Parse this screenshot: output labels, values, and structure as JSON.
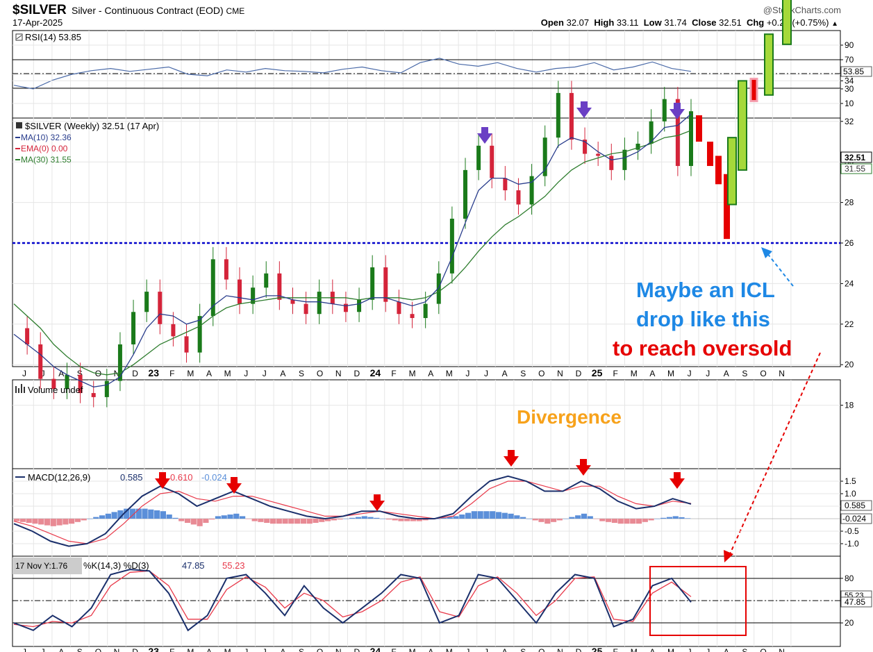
{
  "header": {
    "symbol": "$SILVER",
    "subtitle": "Silver - Continuous Contract (EOD)",
    "exchange": "CME",
    "date": "17-Apr-2025",
    "brand": "@StockCharts.com",
    "open_label": "Open",
    "open": "32.07",
    "high_label": "High",
    "high": "33.11",
    "low_label": "Low",
    "low": "31.74",
    "close_label": "Close",
    "close": "32.51",
    "chg_label": "Chg",
    "chg": "+0.24 (+0.75%)"
  },
  "panels": {
    "rsi": {
      "label": "RSI(14) 53.85",
      "value_tag": "53.85",
      "ticks": [
        "90",
        "70",
        "50",
        "30",
        "10"
      ]
    },
    "price": {
      "legend_main": "$SILVER (Weekly) 32.51 (17 Apr)",
      "legend_ma10": "MA(10) 32.36",
      "legend_ema": "EMA(0) 0.00",
      "legend_ma30": "MA(30) 31.55",
      "tag_close": "32.51",
      "tag_ma30": "31.55",
      "ticks": [
        "34",
        "32",
        "30",
        "28",
        "26",
        "24",
        "22",
        "20",
        "18"
      ]
    },
    "volume": {
      "label": "Volume undef"
    },
    "macd": {
      "label_name": "MACD(12,26,9)",
      "label_macd": "0.585",
      "label_signal": "0.610",
      "label_hist": "-0.024",
      "tag_macd": "0.585",
      "tag_hist": "-0.024",
      "ticks": [
        "1.5",
        "1.0",
        "0.5",
        "-0.5",
        "-1.0"
      ]
    },
    "stoch": {
      "label_prefix": "%K(14,3) %D(3)",
      "label_k": "47.85",
      "label_d": "55.23",
      "tooltip": "17 Nov Y:1.76",
      "tag_k": "47.85",
      "tag_d": "55.23",
      "ticks": [
        "80",
        "50",
        "20"
      ]
    }
  },
  "x_axis": {
    "labels": [
      "J",
      "J",
      "A",
      "S",
      "O",
      "N",
      "D",
      "23",
      "F",
      "M",
      "A",
      "M",
      "J",
      "J",
      "A",
      "S",
      "O",
      "N",
      "D",
      "24",
      "F",
      "M",
      "A",
      "M",
      "J",
      "J",
      "A",
      "S",
      "O",
      "N",
      "D",
      "25",
      "F",
      "M",
      "A",
      "M",
      "J",
      "J",
      "A",
      "S",
      "O",
      "N"
    ]
  },
  "annotations": {
    "icl_line1": "Maybe an ICL",
    "icl_line2": "drop like this",
    "icl_line3": "to reach oversold",
    "divergence": "Divergence"
  },
  "colors": {
    "up": "#1a7a1a",
    "down": "#d4243a",
    "ma10": "#283c8c",
    "ma30": "#2e7d2e",
    "support": "#0000cc",
    "annotation_blue": "#1e88e5",
    "annotation_red": "#e60000",
    "divergence": "#f7a21b",
    "arrow_purple": "#6a3fc4",
    "arrow_red": "#e60000",
    "hist_pos": "#5b8fd9",
    "hist_neg": "#e88a94"
  },
  "chart_data": [
    {
      "type": "line",
      "title": "RSI(14) 53.85",
      "ylim": [
        0,
        100
      ],
      "series": [
        {
          "name": "RSI(14)",
          "values": [
            35,
            30,
            42,
            50,
            55,
            58,
            54,
            57,
            60,
            50,
            48,
            56,
            53,
            58,
            55,
            54,
            52,
            57,
            60,
            55,
            52,
            66,
            72,
            64,
            61,
            66,
            58,
            53,
            58,
            60,
            66,
            56,
            60,
            67,
            58,
            54
          ]
        }
      ]
    },
    {
      "type": "line",
      "title": "$SILVER (Weekly) 32.51 (17 Apr)",
      "ylim": [
        17,
        36
      ],
      "support_level": 26.1,
      "series": [
        {
          "name": "$SILVER",
          "values": [
            21.8,
            21.0,
            19.3,
            18.8,
            19.5,
            18.6,
            18.4,
            19.2,
            21.0,
            22.6,
            23.6,
            22.0,
            21.4,
            20.6,
            22.4,
            25.2,
            24.2,
            23.0,
            23.8,
            24.5,
            23.2,
            23.0,
            22.5,
            23.6,
            23.0,
            22.6,
            23.2,
            24.8,
            23.1,
            22.5,
            22.3,
            23.0,
            24.5,
            27.2,
            29.6,
            30.8,
            29.2,
            28.6,
            27.9,
            29.3,
            31.2,
            33.4,
            31.1,
            30.4,
            30.3,
            29.6,
            30.6,
            30.9,
            32.0,
            33.1,
            29.8,
            32.5
          ]
        },
        {
          "name": "MA(10)",
          "values": [
            21.5,
            21.0,
            20.5,
            19.9,
            19.5,
            19.2,
            18.9,
            19.0,
            19.4,
            20.5,
            21.8,
            22.5,
            22.4,
            22.0,
            22.2,
            22.9,
            23.4,
            23.3,
            23.2,
            23.4,
            23.4,
            23.2,
            23.1,
            23.1,
            23.0,
            22.9,
            23.0,
            23.3,
            23.3,
            23.1,
            22.9,
            23.1,
            23.8,
            25.3,
            27.0,
            28.6,
            29.2,
            29.2,
            28.9,
            29.0,
            29.6,
            30.8,
            31.2,
            31.0,
            30.5,
            30.1,
            30.2,
            30.5,
            31.0,
            31.7,
            31.8,
            32.36
          ]
        },
        {
          "name": "MA(30)",
          "values": [
            23.0,
            22.4,
            21.8,
            21.0,
            20.4,
            19.9,
            19.6,
            19.5,
            19.6,
            20.0,
            20.5,
            21.0,
            21.3,
            21.6,
            21.9,
            22.4,
            22.8,
            23.0,
            23.1,
            23.2,
            23.3,
            23.3,
            23.3,
            23.3,
            23.3,
            23.3,
            23.2,
            23.3,
            23.3,
            23.3,
            23.2,
            23.3,
            23.6,
            24.1,
            24.8,
            25.6,
            26.3,
            26.9,
            27.3,
            27.8,
            28.3,
            29.0,
            29.6,
            30.0,
            30.2,
            30.4,
            30.5,
            30.7,
            30.9,
            31.2,
            31.3,
            31.55
          ]
        }
      ],
      "projection_bars": [
        {
          "dir": "down",
          "open": 32.3,
          "close": 31.0
        },
        {
          "dir": "down",
          "open": 31.0,
          "close": 29.8
        },
        {
          "dir": "down",
          "open": 30.3,
          "close": 28.9
        },
        {
          "dir": "down",
          "open": 29.4,
          "close": 26.2
        },
        {
          "dir": "up",
          "open": 27.9,
          "close": 31.2
        },
        {
          "dir": "up",
          "open": 29.6,
          "close": 34.0
        },
        {
          "dir": "down",
          "open": 34.1,
          "close": 33.0
        },
        {
          "dir": "up",
          "open": 33.3,
          "close": 36.3
        },
        {
          "dir": "up",
          "open": 35.8,
          "close": 40.0
        }
      ]
    },
    {
      "type": "line",
      "title": "MACD(12,26,9) 0.585, 0.610, -0.024",
      "ylim": [
        -1.3,
        1.8
      ],
      "series": [
        {
          "name": "MACD",
          "values": [
            -0.2,
            -0.5,
            -0.9,
            -1.1,
            -1.0,
            -0.6,
            0.2,
            0.9,
            1.3,
            1.0,
            0.5,
            0.8,
            1.1,
            0.8,
            0.5,
            0.3,
            0.1,
            0.0,
            0.1,
            0.3,
            0.3,
            0.1,
            0.0,
            0.0,
            0.2,
            0.9,
            1.5,
            1.7,
            1.5,
            1.1,
            1.1,
            1.5,
            1.2,
            0.7,
            0.4,
            0.5,
            0.8,
            0.585
          ]
        },
        {
          "name": "Signal",
          "values": [
            -0.1,
            -0.3,
            -0.6,
            -0.9,
            -1.0,
            -0.8,
            -0.2,
            0.5,
            1.0,
            1.1,
            0.8,
            0.7,
            0.9,
            0.9,
            0.7,
            0.5,
            0.3,
            0.1,
            0.1,
            0.2,
            0.3,
            0.2,
            0.1,
            0.0,
            0.1,
            0.6,
            1.2,
            1.5,
            1.5,
            1.3,
            1.1,
            1.3,
            1.3,
            0.9,
            0.6,
            0.5,
            0.7,
            0.61
          ]
        },
        {
          "name": "Histogram",
          "values": [
            -0.1,
            -0.2,
            -0.3,
            -0.2,
            0.0,
            0.2,
            0.4,
            0.4,
            0.3,
            -0.1,
            -0.3,
            0.1,
            0.2,
            -0.1,
            -0.2,
            -0.2,
            -0.2,
            -0.1,
            0.0,
            0.1,
            0.0,
            -0.1,
            -0.1,
            0.0,
            0.1,
            0.3,
            0.3,
            0.2,
            0.0,
            -0.2,
            0.0,
            0.2,
            -0.1,
            -0.2,
            -0.2,
            0.0,
            0.1,
            -0.024
          ]
        }
      ]
    },
    {
      "type": "line",
      "title": "%K(14,3) %D(3) 47.85, 55.23",
      "ylim": [
        0,
        100
      ],
      "series": [
        {
          "name": "%K",
          "values": [
            20,
            10,
            30,
            15,
            40,
            85,
            92,
            90,
            60,
            10,
            30,
            80,
            85,
            60,
            30,
            70,
            40,
            20,
            40,
            60,
            85,
            80,
            20,
            30,
            85,
            80,
            50,
            20,
            60,
            85,
            80,
            15,
            25,
            70,
            80,
            47.85
          ]
        },
        {
          "name": "%D",
          "values": [
            18,
            15,
            22,
            20,
            30,
            70,
            88,
            90,
            70,
            25,
            25,
            65,
            82,
            68,
            40,
            60,
            50,
            28,
            35,
            50,
            75,
            82,
            35,
            28,
            70,
            82,
            60,
            30,
            50,
            80,
            82,
            25,
            22,
            60,
            75,
            55.23
          ]
        }
      ]
    }
  ]
}
